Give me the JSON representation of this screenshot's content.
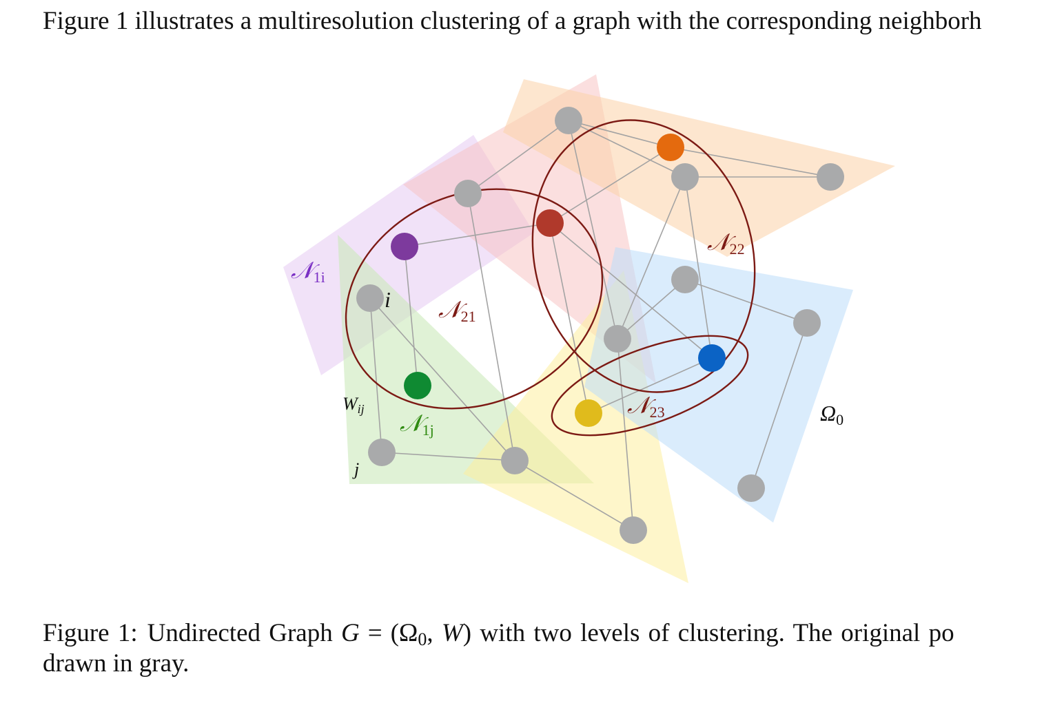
{
  "intro_text": "Figure 1 illustrates a multiresolution clustering of a graph with the corresponding neighborh",
  "caption": {
    "prefix": "Figure 1:",
    "lead": "Undirected Graph",
    "graph_var": "G",
    "equals": "=",
    "open": "(",
    "omega": "Ω",
    "omega_sub": "0",
    "comma": ",",
    "w_var": "W",
    "close": ")",
    "rest": "with two levels of clustering.  The original po",
    "line2": "drawn in gray."
  },
  "figure": {
    "colors": {
      "gray_node": "#a9aaab",
      "edge": "#a3a3a3",
      "ellipse": "#7c1a14",
      "purple_region": "#e3c6f1",
      "pink_region": "#f8bfbf",
      "orange_region": "#fcd2a7",
      "green_region": "#cce9bb",
      "yellow_region": "#fdef9f",
      "blue_region": "#bcdcf9",
      "purple_node": "#7d3a9d",
      "green_node": "#0f8a32",
      "red_node": "#b0392b",
      "orange_node": "#e46a0e",
      "blue_node": "#0b63c5",
      "yellow_node": "#e0bb1c",
      "label_purple": "#7a2fc4",
      "label_green": "#2f8a10",
      "label_dark_red": "#7c1a14",
      "label_black": "#111111"
    },
    "labels": {
      "n1i": {
        "main": "𝒩",
        "sub": "1i"
      },
      "n1j": {
        "main": "𝒩",
        "sub": "1j"
      },
      "n21": {
        "main": "𝒩",
        "sub": "21"
      },
      "n22": {
        "main": "𝒩",
        "sub": "22"
      },
      "n23": {
        "main": "𝒩",
        "sub": "23"
      },
      "omega0": {
        "main": "Ω",
        "sub": "0"
      },
      "node_i": "i",
      "node_j": "j",
      "wij": {
        "main": "W",
        "sub": "ij"
      }
    }
  }
}
